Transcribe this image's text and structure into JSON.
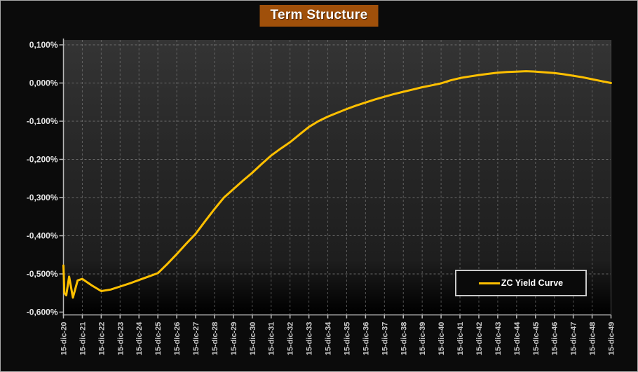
{
  "title": "Term Structure",
  "legend": {
    "label": "ZC Yield Curve"
  },
  "colors": {
    "background": "#0b0b0b",
    "plot_gradient_top": "#343434",
    "plot_gradient_mid": "#1e1e1e",
    "plot_gradient_bottom": "#000000",
    "grid": "#7d7d7d",
    "axis": "#b8b8b8",
    "curve": "#FFC000",
    "title_bg": "#A0500A",
    "title_text": "#ffffff",
    "y_label": "#e6e6e6",
    "x_label": "#c9c9c9",
    "legend_bg": "#0a0a0a",
    "legend_border": "#c9c9c9"
  },
  "chart_data": {
    "type": "line",
    "title": "Term Structure",
    "legend_entries": [
      "ZC Yield Curve"
    ],
    "legend_position": "inside-bottom-right",
    "grid": "dashed",
    "y_axis": {
      "min": -0.6,
      "max": 0.1,
      "step": 0.1,
      "unit": "%",
      "decimal_separator": ","
    },
    "y_tick_labels": [
      "0,100%",
      "0,000%",
      "-0,100%",
      "-0,200%",
      "-0,300%",
      "-0,400%",
      "-0,500%",
      "-0,600%"
    ],
    "x_tick_labels": [
      "15-dic-20",
      "15-dic-21",
      "15-dic-22",
      "15-dic-23",
      "15-dic-24",
      "15-dic-25",
      "15-dic-26",
      "15-dic-27",
      "15-dic-28",
      "15-dic-29",
      "15-dic-30",
      "15-dic-31",
      "15-dic-32",
      "15-dic-33",
      "15-dic-34",
      "15-dic-35",
      "15-dic-36",
      "15-dic-37",
      "15-dic-38",
      "15-dic-39",
      "15-dic-40",
      "15-dic-41",
      "15-dic-42",
      "15-dic-43",
      "15-dic-44",
      "15-dic-45",
      "15-dic-46",
      "15-dic-47",
      "15-dic-48",
      "15-dic-49"
    ],
    "series": [
      {
        "name": "ZC Yield Curve",
        "color": "#FFC000",
        "x_unit": "years-from-15-dic-20",
        "y_unit": "percent",
        "points": [
          [
            0,
            -0.478
          ],
          [
            0.05,
            -0.55
          ],
          [
            0.15,
            -0.556
          ],
          [
            0.3,
            -0.507
          ],
          [
            0.5,
            -0.562
          ],
          [
            0.75,
            -0.517
          ],
          [
            1,
            -0.513
          ],
          [
            1.5,
            -0.53
          ],
          [
            2,
            -0.545
          ],
          [
            2.5,
            -0.541
          ],
          [
            3,
            -0.533
          ],
          [
            3.5,
            -0.525
          ],
          [
            4,
            -0.516
          ],
          [
            4.5,
            -0.507
          ],
          [
            5,
            -0.498
          ],
          [
            5.5,
            -0.474
          ],
          [
            6,
            -0.448
          ],
          [
            6.5,
            -0.421
          ],
          [
            7,
            -0.395
          ],
          [
            7.5,
            -0.362
          ],
          [
            8,
            -0.33
          ],
          [
            8.5,
            -0.3
          ],
          [
            9,
            -0.278
          ],
          [
            9.5,
            -0.256
          ],
          [
            10,
            -0.235
          ],
          [
            10.5,
            -0.212
          ],
          [
            11,
            -0.19
          ],
          [
            11.5,
            -0.172
          ],
          [
            12,
            -0.155
          ],
          [
            12.5,
            -0.135
          ],
          [
            13,
            -0.115
          ],
          [
            13.5,
            -0.1
          ],
          [
            14,
            -0.088
          ],
          [
            14.5,
            -0.078
          ],
          [
            15,
            -0.068
          ],
          [
            15.5,
            -0.059
          ],
          [
            16,
            -0.051
          ],
          [
            16.5,
            -0.043
          ],
          [
            17,
            -0.036
          ],
          [
            17.5,
            -0.029
          ],
          [
            18,
            -0.023
          ],
          [
            18.5,
            -0.017
          ],
          [
            19,
            -0.011
          ],
          [
            19.5,
            -0.006
          ],
          [
            20,
            -0.001
          ],
          [
            20.5,
            0.007
          ],
          [
            21,
            0.013
          ],
          [
            21.5,
            0.017
          ],
          [
            22,
            0.021
          ],
          [
            22.5,
            0.024
          ],
          [
            23,
            0.027
          ],
          [
            23.5,
            0.029
          ],
          [
            24,
            0.03
          ],
          [
            24.5,
            0.031
          ],
          [
            25,
            0.03
          ],
          [
            25.5,
            0.028
          ],
          [
            26,
            0.026
          ],
          [
            26.5,
            0.023
          ],
          [
            27,
            0.019
          ],
          [
            27.5,
            0.015
          ],
          [
            28,
            0.01
          ],
          [
            28.5,
            0.005
          ],
          [
            29,
            0.0
          ]
        ]
      }
    ]
  }
}
